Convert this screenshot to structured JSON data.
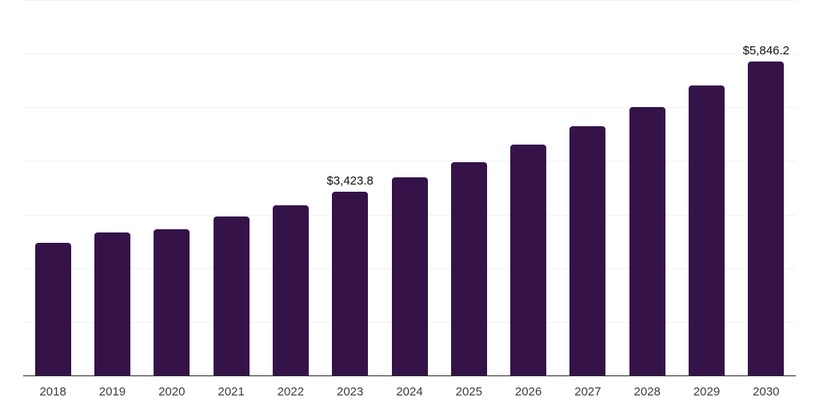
{
  "chart_data": {
    "type": "bar",
    "title": "",
    "xlabel": "",
    "ylabel": "",
    "categories": [
      "2018",
      "2019",
      "2020",
      "2021",
      "2022",
      "2023",
      "2024",
      "2025",
      "2026",
      "2027",
      "2028",
      "2029",
      "2030"
    ],
    "values": [
      2480,
      2670,
      2720,
      2960,
      3180,
      3423.8,
      3690,
      3980,
      4300,
      4640,
      5000,
      5410,
      5846.2
    ],
    "data_labels": {
      "2023": "$3,423.8",
      "2030": "$5,846.2"
    },
    "ylim": [
      0,
      7000
    ],
    "gridline_step": 1000,
    "grid": true,
    "legend": "none",
    "bar_color": "#351349",
    "gridline_color": "#f1f1f3",
    "axis_line_color": "#2b2b2b",
    "tick_label_color": "#3c3c3c",
    "data_label_color": "#111111"
  }
}
